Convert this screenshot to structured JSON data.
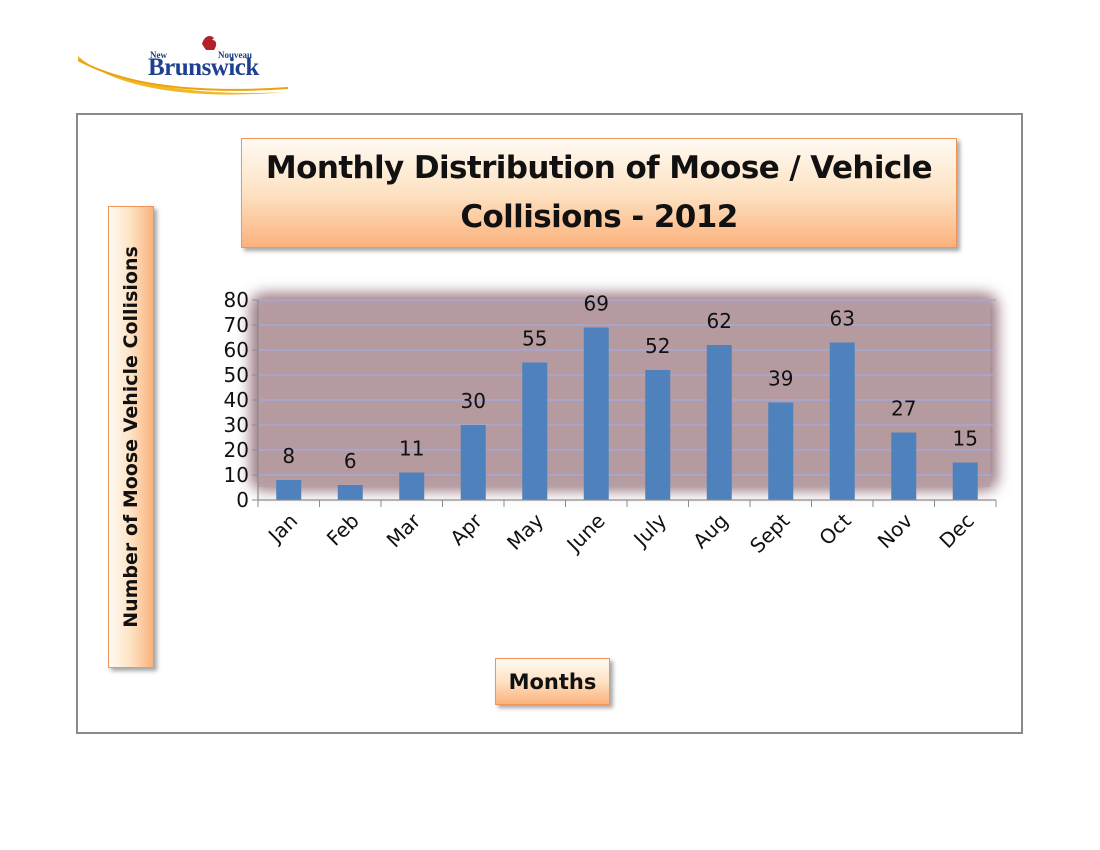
{
  "logo": {
    "text_en": "New",
    "text_fr": "Nouveau",
    "name": "Brunswick"
  },
  "chart_data": {
    "type": "bar",
    "title": "Monthly Distribution of Moose / Vehicle Collisions - 2012",
    "xlabel": "Months",
    "ylabel": "Number of Moose Vehicle Collisions",
    "categories": [
      "Jan",
      "Feb",
      "Mar",
      "Apr",
      "May",
      "June",
      "July",
      "Aug",
      "Sept",
      "Oct",
      "Nov",
      "Dec"
    ],
    "values": [
      8,
      6,
      11,
      30,
      55,
      69,
      52,
      62,
      39,
      63,
      27,
      15
    ],
    "data_labels": [
      "8",
      "6",
      "11",
      "30",
      "55",
      "69",
      "52",
      "62",
      "39",
      "63",
      "27",
      "15"
    ],
    "yticks": [
      "0",
      "10",
      "20",
      "30",
      "40",
      "50",
      "60",
      "70",
      "80"
    ],
    "ylim": [
      0,
      80
    ],
    "grid": true,
    "colors": {
      "bar": "#4f81bd",
      "plot_area": "#b9a0a5",
      "gridline": "#a3a8d8",
      "label_box": "#fbc493"
    }
  }
}
